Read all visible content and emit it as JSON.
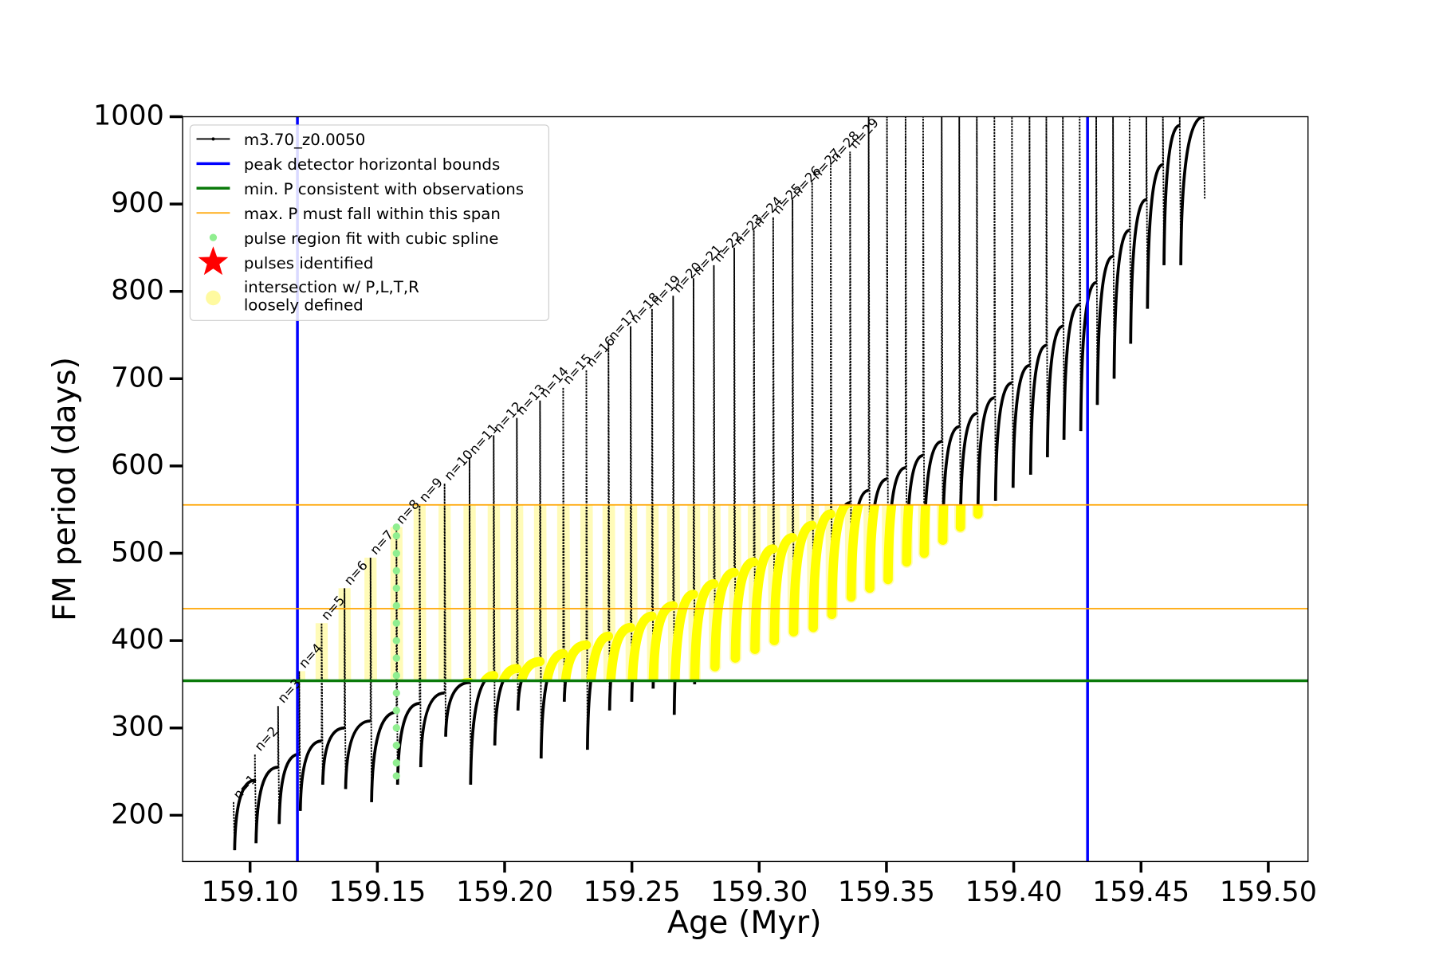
{
  "chart_data": {
    "type": "line",
    "x_label": "Age (Myr)",
    "y_label": "FM period (days)",
    "xlim": [
      159.0735,
      159.5156
    ],
    "ylim": [
      147,
      1000
    ],
    "xticks": [
      {
        "value": 159.1,
        "label": "159.10"
      },
      159.15,
      {
        "value": 159.2,
        "label": "159.20"
      },
      159.25,
      {
        "value": 159.3,
        "label": "159.30"
      },
      159.35,
      {
        "value": 159.4,
        "label": "159.40"
      },
      159.45,
      {
        "value": 159.5,
        "label": "159.50"
      }
    ],
    "yticks": [
      200,
      300,
      400,
      500,
      600,
      700,
      800,
      900,
      1000
    ],
    "legend": "upper left",
    "highlight_color": "#ffff00",
    "series": [
      {
        "name": "m3.70_z0.0050",
        "color": "#000000",
        "marker": "line",
        "x": [
          159.0935,
          159.1019,
          159.111,
          159.1193,
          159.1281,
          159.1371,
          159.1473,
          159.1575,
          159.1666,
          159.1764,
          159.1862,
          159.1957,
          159.2048,
          159.2139,
          159.223,
          159.2321,
          159.2408,
          159.2495,
          159.2579,
          159.2662,
          159.2742,
          159.2822,
          159.2902,
          159.2979,
          159.3055,
          159.3131,
          159.3208,
          159.3281,
          159.3357,
          159.343,
          159.3502,
          159.3575,
          159.3644,
          159.3717,
          159.3786,
          159.3855,
          159.3924,
          159.3993,
          159.4062,
          159.4128,
          159.4193,
          159.4259,
          159.4324,
          159.439,
          159.4455,
          159.4521,
          159.4586,
          159.4652,
          159.4746
        ],
        "pre_pulse": [
          215,
          240,
          255,
          270,
          285,
          300,
          308,
          318,
          328,
          340,
          352,
          360,
          368,
          376,
          385,
          395,
          405,
          415,
          428,
          440,
          453,
          465,
          478,
          490,
          505,
          518,
          532,
          545,
          558,
          572,
          585,
          598,
          612,
          628,
          645,
          660,
          678,
          695,
          715,
          738,
          760,
          785,
          810,
          840,
          870,
          905,
          945,
          990,
          1000
        ],
        "peak": [
          215,
          270,
          325,
          365,
          420,
          460,
          495,
          530,
          555,
          580,
          610,
          635,
          655,
          675,
          690,
          710,
          740,
          760,
          780,
          795,
          815,
          830,
          850,
          870,
          885,
          905,
          925,
          945,
          960,
          1000,
          1000,
          1000,
          1000,
          1000,
          1000,
          1000,
          1000,
          1000,
          1000,
          1000,
          1000,
          1000,
          1000,
          1000,
          1000,
          1000,
          1000,
          1000,
          1000
        ],
        "post_pulse": [
          160,
          168,
          190,
          205,
          235,
          230,
          215,
          235,
          255,
          290,
          235,
          280,
          320,
          265,
          330,
          275,
          320,
          330,
          345,
          315,
          350,
          370,
          380,
          390,
          400,
          410,
          415,
          430,
          450,
          460,
          470,
          490,
          500,
          515,
          530,
          545,
          560,
          575,
          590,
          610,
          630,
          640,
          670,
          700,
          740,
          780,
          830,
          830,
          905
        ],
        "pulse_labels": [
          "n=1",
          "n=2",
          "n=3",
          "n=4",
          "n=5",
          "n=6",
          "n=7",
          "n=8",
          "n=9",
          "n=10",
          "n=11",
          "n=12",
          "n=13",
          "n=14",
          "n=15",
          "n=16",
          "n=17",
          "n=18",
          "n=19",
          "n=20",
          "n=21",
          "n=22",
          "n=23",
          "n=24",
          "n=25",
          "n=26",
          "n=27",
          "n=28",
          "n=29"
        ]
      },
      {
        "name": "peak detector horizontal bounds",
        "color": "#0000ff",
        "marker": "vline",
        "x": [
          159.1186,
          159.429
        ]
      },
      {
        "name": "min. P consistent with observations",
        "color": "#0a7a0a",
        "marker": "hline",
        "values": [
          354
        ]
      },
      {
        "name": "max. P must fall within this span",
        "color": "#ffa500",
        "marker": "hline-thin",
        "values": [
          436.6,
          555.4
        ]
      },
      {
        "name": "pulse region fit with cubic spline",
        "color": "#90ee90",
        "marker": "point",
        "x": [
          159.1575,
          159.1575,
          159.1575,
          159.1575,
          159.1575,
          159.1575,
          159.1575,
          159.1575,
          159.1575,
          159.1575,
          159.1575,
          159.1575,
          159.1575,
          159.1575,
          159.1575,
          159.1575
        ],
        "values": [
          245,
          260,
          280,
          300,
          320,
          340,
          360,
          380,
          400,
          420,
          440,
          460,
          480,
          500,
          520,
          530
        ]
      },
      {
        "name": "pulses identified",
        "color": "#ff0000",
        "marker": "star"
      },
      {
        "name": "intersection w/ P,L,T,R\nloosely defined",
        "color": "#fffaa0",
        "marker": "circle"
      }
    ]
  }
}
